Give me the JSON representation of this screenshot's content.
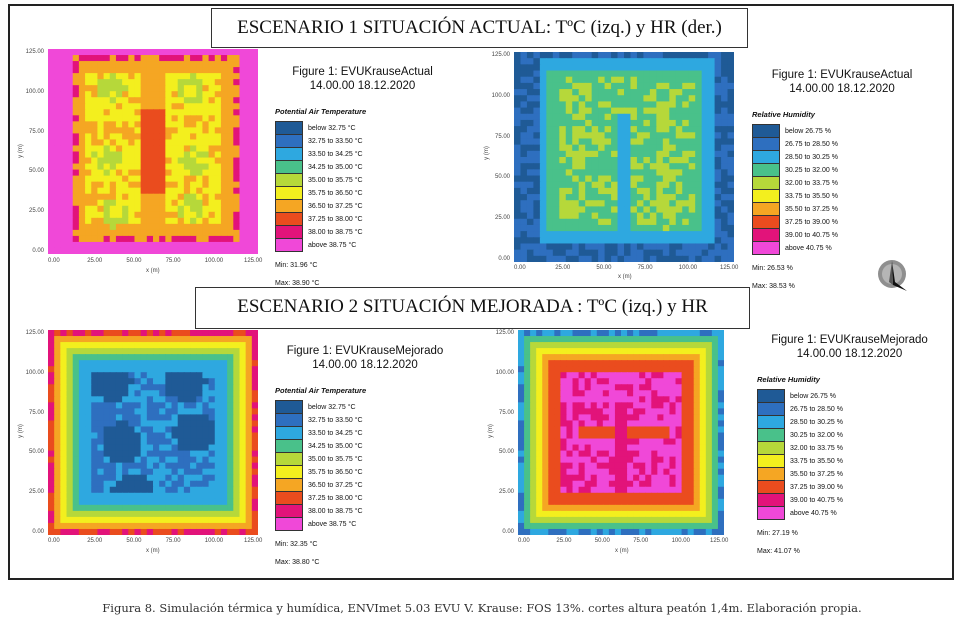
{
  "scenario1": {
    "title": "ESCENARIO 1 SITUACIÓN ACTUAL: TºC (izq.) y HR (der.)",
    "temperature": {
      "figure_line1": "Figure 1: EVUKrauseActual",
      "figure_line2": "14.00.00 18.12.2020",
      "variable": "Potential Air Temperature",
      "min": "Min: 31.96 °C",
      "max": "Max: 38.90 °C"
    },
    "humidity": {
      "figure_line1": "Figure 1: EVUKrauseActual",
      "figure_line2": "14.00.00 18.12.2020",
      "variable": "Relative Humidity",
      "min": "Min: 26.53 %",
      "max": "Max: 38.53 %"
    }
  },
  "scenario2": {
    "title": "ESCENARIO 2 SITUACIÓN MEJORADA : TºC (izq.) y HR",
    "temperature": {
      "figure_line1": "Figure 1: EVUKrauseMejorado",
      "figure_line2": "14.00.00 18.12.2020",
      "variable": "Potential Air Temperature",
      "min": "Min: 32.35 °C",
      "max": "Max: 38.80 °C"
    },
    "humidity": {
      "figure_line1": "Figure 1: EVUKrauseMejorado",
      "figure_line2": "14.00.00 18.12.2020",
      "variable": "Relative Humidity",
      "min": "Min: 27.19 %",
      "max": "Max: 41.07 %"
    }
  },
  "temp_legend": [
    "below 32.75 °C",
    "32.75 to 33.50 °C",
    "33.50 to 34.25 °C",
    "34.25 to 35.00 °C",
    "35.00 to 35.75 °C",
    "35.75 to 36.50 °C",
    "36.50 to 37.25 °C",
    "37.25 to 38.00 °C",
    "38.00 to 38.75 °C",
    "above 38.75 °C"
  ],
  "hum_legend": [
    "below 26.75 %",
    "26.75 to 28.50 %",
    "28.50 to 30.25 %",
    "30.25 to 32.00 %",
    "32.00 to 33.75 %",
    "33.75 to 35.50 %",
    "35.50 to 37.25 %",
    "37.25 to 39.00 %",
    "39.00 to 40.75 %",
    "above 40.75 %"
  ],
  "legend_colors": [
    "#1f5a96",
    "#2e6fbf",
    "#2ea8e0",
    "#49c18a",
    "#b6d83a",
    "#f3ef1e",
    "#f5a623",
    "#ea4c1e",
    "#e2137a",
    "#f048d8"
  ],
  "axis": {
    "y_ticks": [
      "125.00",
      "100.00",
      "75.00",
      "50.00",
      "25.00",
      "0.00"
    ],
    "x_ticks": [
      "0.00",
      "25.00",
      "50.00",
      "75.00",
      "100.00",
      "125.00"
    ],
    "x_label": "x (m)",
    "y_label": "y (m)"
  },
  "compass_icon": "north-arrow-icon",
  "caption": "Figura 8. Simulación térmica y humídica, ENVImet 5.03 EVU V. Krause: FOS 13%. cortes altura peatón 1,4m. Elaboración propia."
}
